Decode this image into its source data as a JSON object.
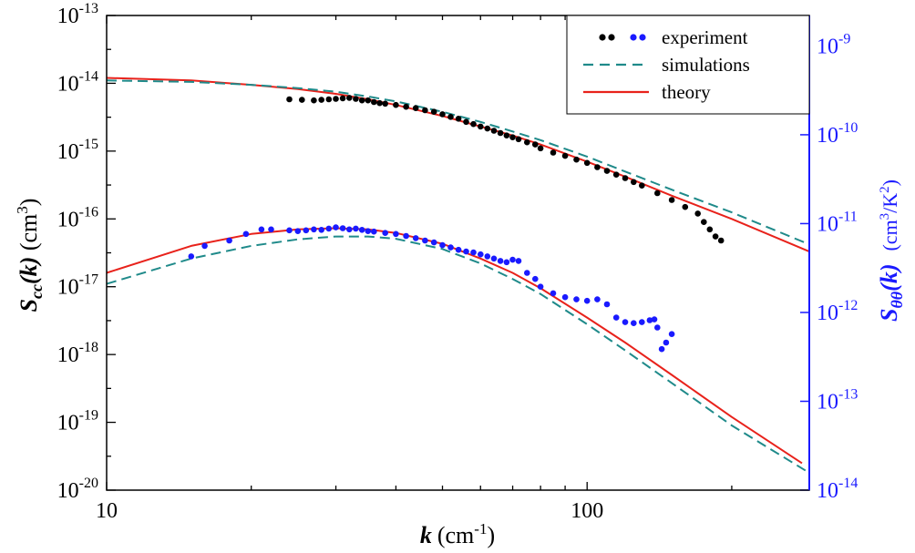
{
  "chart_data": {
    "type": "scatter",
    "x_scale": "log",
    "y_scale": "log",
    "xlim": [
      10,
      290
    ],
    "ylim": [
      1e-20,
      1e-13
    ],
    "ylim_right": [
      1e-14,
      2.2e-09
    ],
    "grid": false,
    "legend_position": "top-right",
    "x_axis": {
      "label_var": "k",
      "label_unit_base": "(cm",
      "label_unit_sup": "-1",
      "label_unit_end": ")",
      "ticks": [
        {
          "value": 10,
          "label": "10"
        },
        {
          "value": 100,
          "label": "100"
        }
      ]
    },
    "y_axis_left": {
      "label_main": "S",
      "label_sub": "cc",
      "label_arg": "(k)",
      "label_unit_base": " (cm",
      "label_unit_sup": "3",
      "label_unit_end": ")",
      "ticks": [
        {
          "value": 1e-20,
          "base": "10",
          "exp": "-20"
        },
        {
          "value": 1e-19,
          "base": "10",
          "exp": "-19"
        },
        {
          "value": 1e-18,
          "base": "10",
          "exp": "-18"
        },
        {
          "value": 1e-17,
          "base": "10",
          "exp": "-17"
        },
        {
          "value": 1e-16,
          "base": "10",
          "exp": "-16"
        },
        {
          "value": 1e-15,
          "base": "10",
          "exp": "-15"
        },
        {
          "value": 1e-14,
          "base": "10",
          "exp": "-14"
        },
        {
          "value": 1e-13,
          "base": "10",
          "exp": "-13"
        }
      ]
    },
    "y_axis_right": {
      "label_main": "S",
      "label_sub": "θθ",
      "label_arg": "(k)",
      "label_unit_a": "(cm",
      "label_unit_sup1": "3",
      "label_unit_b": "/K",
      "label_unit_sup2": "2",
      "label_unit_end": ")",
      "color": "#1a1aff",
      "ticks": [
        {
          "value": 1e-14,
          "base": "10",
          "exp": "-14"
        },
        {
          "value": 1e-13,
          "base": "10",
          "exp": "-13"
        },
        {
          "value": 1e-12,
          "base": "10",
          "exp": "-12"
        },
        {
          "value": 1e-11,
          "base": "10",
          "exp": "-11"
        },
        {
          "value": 1e-10,
          "base": "10",
          "exp": "-10"
        },
        {
          "value": 1e-09,
          "base": "10",
          "exp": "-9"
        }
      ]
    },
    "legend": [
      {
        "label": "experiment",
        "kind": "dots",
        "colors": [
          "#000000",
          "#1a1aff"
        ]
      },
      {
        "label": "simulations",
        "kind": "dash",
        "color": "#1f8a8a"
      },
      {
        "label": "theory",
        "kind": "line",
        "color": "#e8221b"
      }
    ],
    "series": [
      {
        "group": "concentration",
        "kind": "line",
        "color": "#e8221b",
        "x": [
          10,
          15,
          20,
          25,
          30,
          35,
          40,
          50,
          60,
          70,
          80,
          100,
          120,
          150,
          200,
          290
        ],
        "y": [
          1.2e-14,
          1.1e-14,
          9.5e-15,
          8.2e-15,
          7e-15,
          5.8e-15,
          4.8e-15,
          3.3e-15,
          2.3e-15,
          1.7e-15,
          1.25e-15,
          7e-16,
          4.2e-16,
          2.2e-16,
          1e-16,
          3.3e-17
        ]
      },
      {
        "group": "concentration",
        "kind": "dash",
        "color": "#1f8a8a",
        "x": [
          10,
          15,
          20,
          25,
          30,
          35,
          40,
          50,
          60,
          70,
          80,
          100,
          120,
          150,
          200,
          290
        ],
        "y": [
          1.1e-14,
          1.05e-14,
          9.5e-15,
          8.5e-15,
          7.5e-15,
          6.4e-15,
          5.4e-15,
          3.8e-15,
          2.7e-15,
          1.95e-15,
          1.45e-15,
          8.3e-16,
          5e-16,
          2.7e-16,
          1.25e-16,
          4.2e-17
        ]
      },
      {
        "group": "temperature",
        "kind": "line",
        "color": "#e8221b",
        "x": [
          10,
          15,
          20,
          25,
          30,
          35,
          40,
          50,
          60,
          70,
          80,
          100,
          120,
          150,
          200,
          280
        ],
        "y": [
          1.6e-17,
          4e-17,
          6e-17,
          7e-17,
          7.3e-17,
          7e-17,
          6.2e-17,
          4.3e-17,
          2.6e-17,
          1.6e-17,
          9.5e-18,
          3.5e-18,
          1.5e-18,
          5e-19,
          1.2e-19,
          2.5e-20
        ]
      },
      {
        "group": "temperature",
        "kind": "dash",
        "color": "#1f8a8a",
        "x": [
          10,
          15,
          20,
          25,
          30,
          35,
          40,
          50,
          60,
          70,
          80,
          100,
          120,
          150,
          200,
          290
        ],
        "y": [
          1.1e-17,
          2.6e-17,
          4e-17,
          5e-17,
          5.5e-17,
          5.5e-17,
          5.1e-17,
          3.6e-17,
          2.2e-17,
          1.3e-17,
          7.8e-18,
          2.8e-18,
          1.15e-18,
          3.8e-19,
          9e-20,
          1.8e-20
        ]
      },
      {
        "group": "concentration",
        "kind": "dots",
        "color": "#000000",
        "x": [
          24,
          25.5,
          27,
          28,
          29,
          30,
          31,
          32,
          33,
          34,
          35,
          36,
          37,
          38,
          40,
          42,
          44,
          46,
          48,
          50,
          52,
          54,
          56,
          58,
          60,
          62,
          64,
          66,
          68,
          70,
          72,
          75,
          78,
          80,
          85,
          90,
          95,
          100,
          105,
          110,
          115,
          120,
          125,
          130,
          140,
          150,
          160,
          170,
          175,
          180,
          185,
          190
        ],
        "y": [
          5.8e-15,
          5.7e-15,
          5.6e-15,
          5.7e-15,
          5.8e-15,
          5.9e-15,
          6e-15,
          6.1e-15,
          5.9e-15,
          5.6e-15,
          5.6e-15,
          5.3e-15,
          5.1e-15,
          5e-15,
          4.8e-15,
          4.5e-15,
          4.3e-15,
          4e-15,
          3.8e-15,
          3.5e-15,
          3.2e-15,
          3e-15,
          2.7e-15,
          2.5e-15,
          2.3e-15,
          2.15e-15,
          2e-15,
          1.85e-15,
          1.7e-15,
          1.6e-15,
          1.5e-15,
          1.35e-15,
          1.25e-15,
          1.1e-15,
          9.5e-16,
          8.5e-16,
          7.5e-16,
          6.7e-16,
          5.8e-16,
          5.1e-16,
          4.5e-16,
          4e-16,
          3.5e-16,
          3.1e-16,
          2.4e-16,
          1.9e-16,
          1.5e-16,
          1.2e-16,
          9e-17,
          7e-17,
          5.5e-17,
          4.8e-17
        ]
      },
      {
        "group": "temperature",
        "kind": "dots",
        "color": "#1a1aff",
        "x": [
          15,
          16,
          18,
          19.5,
          21,
          22,
          24,
          25,
          26,
          27,
          28,
          29,
          30,
          31,
          32,
          33,
          34,
          35,
          36,
          38,
          40,
          42,
          44,
          46,
          48,
          50,
          52,
          54,
          56,
          58,
          60,
          62,
          64,
          66,
          68,
          70,
          72,
          75,
          78,
          80,
          85,
          90,
          95,
          100,
          105,
          110,
          115,
          120,
          125,
          130,
          135,
          138,
          140,
          143,
          146,
          150
        ],
        "y": [
          2.8e-17,
          4e-17,
          4.8e-17,
          6e-17,
          7e-17,
          7e-17,
          6.8e-17,
          6.6e-17,
          6.8e-17,
          7e-17,
          6.9e-17,
          7.2e-17,
          7.5e-17,
          7.3e-17,
          7e-17,
          7.2e-17,
          6.9e-17,
          6.6e-17,
          6.5e-17,
          6.2e-17,
          6e-17,
          5.6e-17,
          5.2e-17,
          4.8e-17,
          4.5e-17,
          4.1e-17,
          3.8e-17,
          3.5e-17,
          3.3e-17,
          3.2e-17,
          3e-17,
          2.8e-17,
          2.6e-17,
          2.4e-17,
          2.3e-17,
          2.5e-17,
          2.4e-17,
          1.6e-17,
          1.3e-17,
          1e-17,
          8e-18,
          7e-18,
          6.5e-18,
          6.2e-18,
          6.5e-18,
          5.5e-18,
          3.5e-18,
          3e-18,
          2.9e-18,
          3e-18,
          3.2e-18,
          3.3e-18,
          2.5e-18,
          1.2e-18,
          1.5e-18,
          2e-18
        ]
      }
    ]
  }
}
